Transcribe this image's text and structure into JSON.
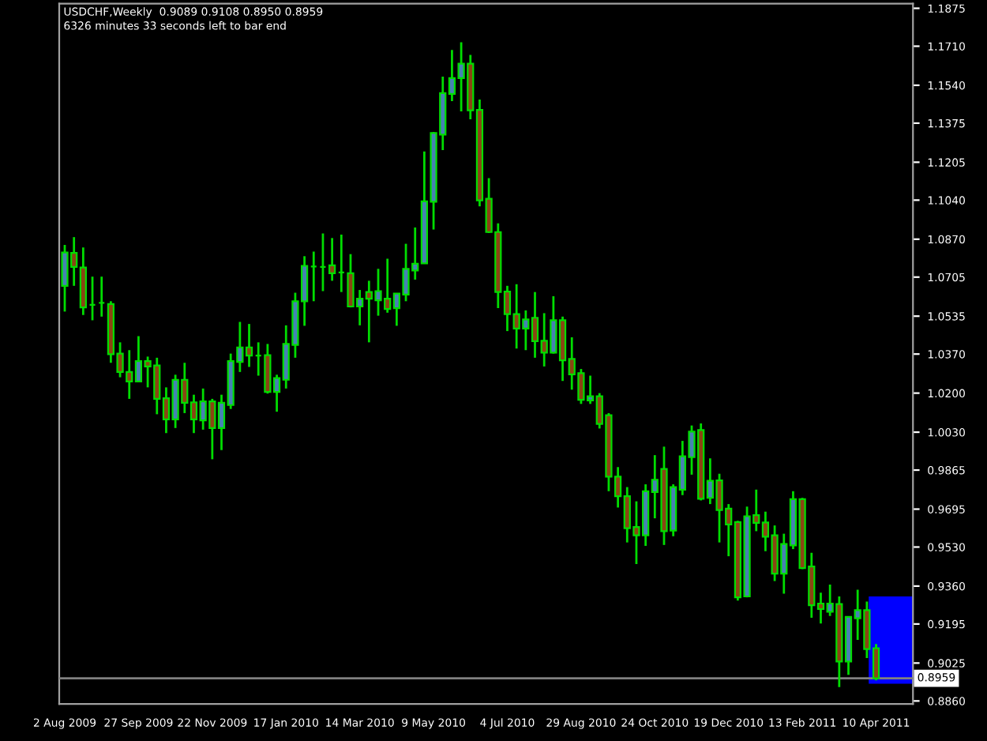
{
  "chart_data": {
    "type": "candlestick",
    "title": "USDCHF,Weekly  0.9089 0.9108 0.8950 0.8959",
    "subtitle": "6326 minutes 33 seconds left to bar end",
    "categories": [
      "2 Aug 2009",
      null,
      null,
      null,
      null,
      null,
      null,
      null,
      "27 Sep 2009",
      null,
      null,
      null,
      null,
      null,
      null,
      null,
      "22 Nov 2009",
      null,
      null,
      null,
      null,
      null,
      null,
      null,
      "17 Jan 2010",
      null,
      null,
      null,
      null,
      null,
      null,
      null,
      "14 Mar 2010",
      null,
      null,
      null,
      null,
      null,
      null,
      null,
      "9 May 2010",
      null,
      null,
      null,
      null,
      null,
      null,
      null,
      "4 Jul 2010",
      null,
      null,
      null,
      null,
      null,
      null,
      null,
      "29 Aug 2010",
      null,
      null,
      null,
      null,
      null,
      null,
      null,
      "24 Oct 2010",
      null,
      null,
      null,
      null,
      null,
      null,
      null,
      "19 Dec 2010",
      null,
      null,
      null,
      null,
      null,
      null,
      null,
      "13 Feb 2011",
      null,
      null,
      null,
      null,
      null,
      null,
      null,
      "10 Apr 2011"
    ],
    "ohlc": [
      [
        1.0667,
        1.0845,
        1.0555,
        1.0812
      ],
      [
        1.081,
        1.0879,
        1.0667,
        1.0749
      ],
      [
        1.0747,
        1.0834,
        1.054,
        1.0573
      ],
      [
        1.0584,
        1.0707,
        1.0517,
        1.0584
      ],
      [
        1.0593,
        1.0707,
        1.0533,
        1.0593
      ],
      [
        1.0588,
        1.06,
        1.0332,
        1.0369
      ],
      [
        1.0372,
        1.0421,
        1.0269,
        1.0292
      ],
      [
        1.0292,
        1.0387,
        1.0175,
        1.0251
      ],
      [
        1.0251,
        1.0448,
        1.0251,
        1.0339
      ],
      [
        1.0339,
        1.0359,
        1.0225,
        1.0316
      ],
      [
        1.032,
        1.0354,
        1.0108,
        1.0175
      ],
      [
        1.0178,
        1.0225,
        1.0026,
        1.0086
      ],
      [
        1.0086,
        1.028,
        1.0048,
        1.0258
      ],
      [
        1.0258,
        1.0332,
        1.0113,
        1.0158
      ],
      [
        1.016,
        1.0193,
        1.0026,
        1.0086
      ],
      [
        1.0081,
        1.022,
        1.0041,
        1.0164
      ],
      [
        1.0164,
        1.0175,
        0.9912,
        1.0048
      ],
      [
        1.0048,
        1.0193,
        0.9952,
        1.0158
      ],
      [
        1.0148,
        1.0372,
        1.0131,
        1.0339
      ],
      [
        1.0336,
        1.051,
        1.0292,
        1.0399
      ],
      [
        1.0399,
        1.0501,
        1.0314,
        1.0363
      ],
      [
        1.0363,
        1.0421,
        1.0276,
        1.0363
      ],
      [
        1.0365,
        1.0414,
        1.0198,
        1.0205
      ],
      [
        1.0205,
        1.028,
        1.0119,
        1.0265
      ],
      [
        1.0258,
        1.0495,
        1.022,
        1.0414
      ],
      [
        1.041,
        1.0637,
        1.0354,
        1.06
      ],
      [
        1.06,
        1.0796,
        1.0493,
        1.0754
      ],
      [
        1.0751,
        1.0816,
        1.06,
        1.0751
      ],
      [
        1.0749,
        1.0895,
        1.0644,
        1.0749
      ],
      [
        1.0756,
        1.0875,
        1.0689,
        1.0722
      ],
      [
        1.0725,
        1.089,
        1.064,
        1.0725
      ],
      [
        1.0722,
        1.0805,
        1.0573,
        1.0577
      ],
      [
        1.0577,
        1.0649,
        1.0495,
        1.0611
      ],
      [
        1.064,
        1.0689,
        1.0421,
        1.0611
      ],
      [
        1.0604,
        1.0741,
        1.0537,
        1.0644
      ],
      [
        1.0611,
        1.0785,
        1.055,
        1.0566
      ],
      [
        1.057,
        1.0633,
        1.0493,
        1.0633
      ],
      [
        1.0629,
        1.085,
        1.06,
        1.0741
      ],
      [
        1.0734,
        1.0921,
        1.0694,
        1.0763
      ],
      [
        1.0765,
        1.1252,
        1.0765,
        1.1035
      ],
      [
        1.1033,
        1.1337,
        1.0912,
        1.1332
      ],
      [
        1.1325,
        1.1578,
        1.1258,
        1.1506
      ],
      [
        1.1502,
        1.1694,
        1.1471,
        1.1571
      ],
      [
        1.1571,
        1.1727,
        1.1426,
        1.1634
      ],
      [
        1.1634,
        1.1672,
        1.1392,
        1.1431
      ],
      [
        1.1433,
        1.1478,
        1.1013,
        1.1039
      ],
      [
        1.1046,
        1.1136,
        1.0897,
        1.0901
      ],
      [
        1.0901,
        1.0939,
        1.057,
        1.064
      ],
      [
        1.0642,
        1.0667,
        1.047,
        1.0544
      ],
      [
        1.0544,
        1.0674,
        1.0394,
        1.0481
      ],
      [
        1.0481,
        1.056,
        1.0387,
        1.0521
      ],
      [
        1.0528,
        1.064,
        1.0354,
        1.0426
      ],
      [
        1.0428,
        1.0548,
        1.0316,
        1.0376
      ],
      [
        1.0376,
        1.0622,
        1.0372,
        1.0517
      ],
      [
        1.0517,
        1.0533,
        1.0253,
        1.0343
      ],
      [
        1.0349,
        1.0443,
        1.0215,
        1.0282
      ],
      [
        1.0287,
        1.0305,
        1.0153,
        1.0171
      ],
      [
        1.0168,
        1.0276,
        1.0153,
        1.0186
      ],
      [
        1.0186,
        1.02,
        1.0046,
        1.0066
      ],
      [
        1.0104,
        1.0113,
        0.9773,
        0.9836
      ],
      [
        0.9836,
        0.9878,
        0.9702,
        0.9751
      ],
      [
        0.9751,
        0.9791,
        0.955,
        0.9612
      ],
      [
        0.9617,
        0.9729,
        0.9456,
        0.9581
      ],
      [
        0.9581,
        0.9803,
        0.9535,
        0.9773
      ],
      [
        0.9769,
        0.993,
        0.9655,
        0.9823
      ],
      [
        0.987,
        0.9967,
        0.9539,
        0.9599
      ],
      [
        0.9602,
        0.9803,
        0.9577,
        0.9791
      ],
      [
        0.978,
        0.9992,
        0.9756,
        0.9925
      ],
      [
        0.9921,
        1.0059,
        0.9845,
        1.0032
      ],
      [
        1.0039,
        1.0068,
        0.9733,
        0.974
      ],
      [
        0.9744,
        0.9916,
        0.9717,
        0.9818
      ],
      [
        0.982,
        0.9849,
        0.955,
        0.9691
      ],
      [
        0.9697,
        0.9717,
        0.949,
        0.9628
      ],
      [
        0.9639,
        0.9644,
        0.9297,
        0.9311
      ],
      [
        0.9315,
        0.9706,
        0.9311,
        0.9664
      ],
      [
        0.9669,
        0.978,
        0.9599,
        0.9635
      ],
      [
        0.9637,
        0.9684,
        0.9512,
        0.9575
      ],
      [
        0.9581,
        0.9624,
        0.9382,
        0.9414
      ],
      [
        0.9414,
        0.9588,
        0.9327,
        0.9543
      ],
      [
        0.9537,
        0.9773,
        0.9521,
        0.9738
      ],
      [
        0.9738,
        0.9744,
        0.9434,
        0.9438
      ],
      [
        0.9445,
        0.9505,
        0.9222,
        0.9277
      ],
      [
        0.9284,
        0.9331,
        0.9197,
        0.926
      ],
      [
        0.9248,
        0.9367,
        0.923,
        0.9284
      ],
      [
        0.9282,
        0.9315,
        0.892,
        0.9032
      ],
      [
        0.9032,
        0.9226,
        0.8974,
        0.9226
      ],
      [
        0.922,
        0.9344,
        0.9126,
        0.9255
      ],
      [
        0.9255,
        0.9293,
        0.9047,
        0.9086
      ],
      [
        0.9089,
        0.9108,
        0.895,
        0.8959
      ]
    ],
    "colors": [
      "#4682b4",
      "#8b4513",
      "#8b4513",
      "#00dd00",
      "#00dd00",
      "#8b4513",
      "#8b4513",
      "#8b4513",
      "#4682b4",
      "#8b4513",
      "#8b4513",
      "#8b4513",
      "#4682b4",
      "#8b4513",
      "#8b4513",
      "#4682b4",
      "#8b4513",
      "#4682b4",
      "#4682b4",
      "#4682b4",
      "#8b4513",
      "#00dd00",
      "#8b4513",
      "#4682b4",
      "#4682b4",
      "#4682b4",
      "#4682b4",
      "#00dd00",
      "#00dd00",
      "#8b4513",
      "#00dd00",
      "#8b4513",
      "#4682b4",
      "#8b4513",
      "#4682b4",
      "#8b4513",
      "#4682b4",
      "#4682b4",
      "#4682b4",
      "#4682b4",
      "#4682b4",
      "#4682b4",
      "#4682b4",
      "#4682b4",
      "#8b4513",
      "#8b4513",
      "#8b4513",
      "#8b4513",
      "#8b4513",
      "#8b4513",
      "#4682b4",
      "#8b4513",
      "#8b4513",
      "#4682b4",
      "#8b4513",
      "#8b4513",
      "#8b4513",
      "#4682b4",
      "#8b4513",
      "#8b4513",
      "#8b4513",
      "#8b4513",
      "#8b4513",
      "#4682b4",
      "#4682b4",
      "#8b4513",
      "#4682b4",
      "#4682b4",
      "#4682b4",
      "#8b4513",
      "#4682b4",
      "#8b4513",
      "#8b4513",
      "#8b4513",
      "#4682b4",
      "#8b4513",
      "#8b4513",
      "#8b4513",
      "#4682b4",
      "#4682b4",
      "#8b4513",
      "#8b4513",
      "#8b4513",
      "#4682b4",
      "#8b4513",
      "#4682b4",
      "#4682b4",
      "#8b4513",
      "#8b4513"
    ],
    "ylim": [
      0.8847,
      1.1895
    ],
    "yticks": [
      1.1875,
      {
        "value": 1.171,
        "label": "1.1710"
      },
      {
        "value": 1.154,
        "label": "1.1540"
      },
      1.1375,
      1.1205,
      {
        "value": 1.104,
        "label": "1.1040"
      },
      {
        "value": 1.087,
        "label": "1.0870"
      },
      1.0705,
      1.0535,
      {
        "value": 1.037,
        "label": "1.0370"
      },
      {
        "value": 1.02,
        "label": "1.0200"
      },
      {
        "value": 1.003,
        "label": "1.0030"
      },
      0.9865,
      0.9695,
      {
        "value": 0.953,
        "label": "0.9530"
      },
      {
        "value": 0.936,
        "label": "0.9360"
      },
      0.9195,
      0.9025,
      {
        "value": 0.886,
        "label": "0.8860"
      }
    ],
    "ref_lines": [
      {
        "axis": "y",
        "value": 0.8959,
        "label": "0.8959",
        "color": "#808080"
      }
    ],
    "grid": false,
    "legend": false
  }
}
